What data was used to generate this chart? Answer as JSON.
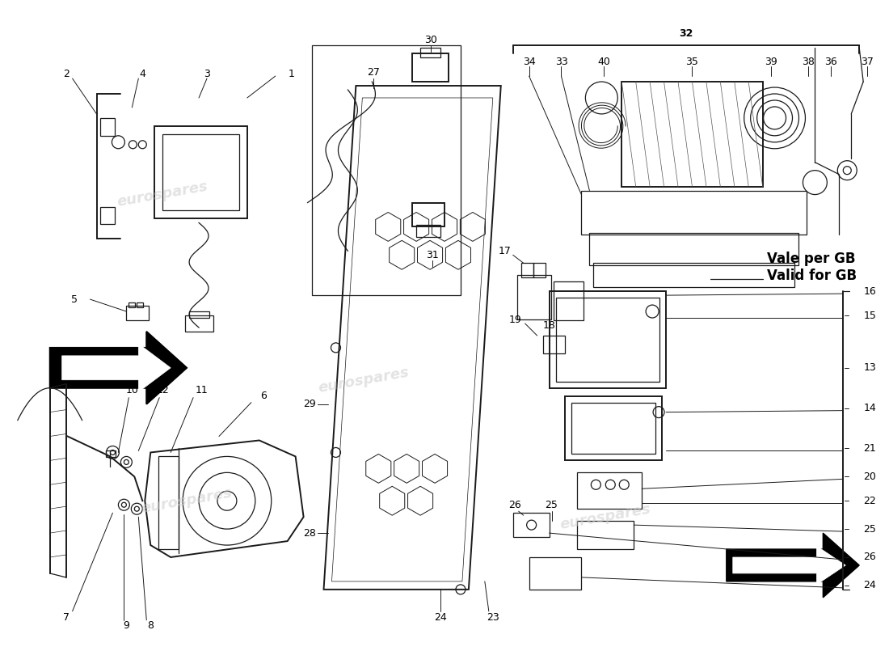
{
  "bg_color": "#ffffff",
  "line_color": "#1a1a1a",
  "watermark_color": "#cccccc",
  "watermark_text": "eurospares",
  "label_fontsize": 9,
  "bold_text": "Vale per GB\nValid for GB",
  "bold_fontsize": 12
}
